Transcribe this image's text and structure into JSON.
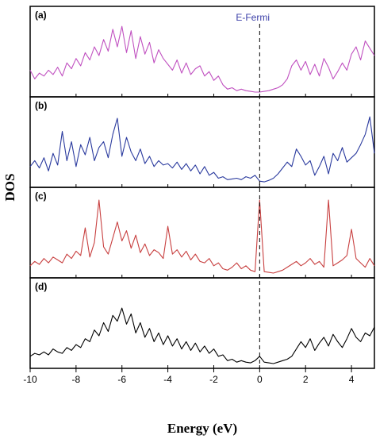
{
  "chart_data": {
    "type": "line",
    "xlabel": "Energy (eV)",
    "ylabel": "DOS",
    "xlim": [
      -10,
      5
    ],
    "xticks": [
      "-10",
      "-8",
      "-6",
      "-4",
      "-2",
      "0",
      "2",
      "4"
    ],
    "fermi": {
      "label": "E-Fermi",
      "x": 0,
      "color": "#3b3fa8"
    },
    "panels": [
      {
        "label": "(a)",
        "color": "#c050c0",
        "x": [
          -10,
          -9.8,
          -9.6,
          -9.4,
          -9.2,
          -9,
          -8.8,
          -8.6,
          -8.4,
          -8.2,
          -8,
          -7.8,
          -7.6,
          -7.4,
          -7.2,
          -7,
          -6.8,
          -6.6,
          -6.4,
          -6.2,
          -6,
          -5.8,
          -5.6,
          -5.4,
          -5.2,
          -5,
          -4.8,
          -4.6,
          -4.4,
          -4.2,
          -4,
          -3.8,
          -3.6,
          -3.4,
          -3.2,
          -3,
          -2.8,
          -2.6,
          -2.4,
          -2.2,
          -2,
          -1.8,
          -1.6,
          -1.4,
          -1.2,
          -1,
          -0.8,
          -0.6,
          -0.4,
          -0.2,
          0,
          0.2,
          0.4,
          0.6,
          0.8,
          1,
          1.2,
          1.4,
          1.6,
          1.8,
          2,
          2.2,
          2.4,
          2.6,
          2.8,
          3,
          3.2,
          3.4,
          3.6,
          3.8,
          4,
          4.2,
          4.4,
          4.6,
          4.8,
          5
        ],
        "values": [
          0.3,
          0.18,
          0.26,
          0.22,
          0.3,
          0.24,
          0.34,
          0.22,
          0.4,
          0.32,
          0.46,
          0.36,
          0.54,
          0.44,
          0.62,
          0.5,
          0.72,
          0.56,
          0.86,
          0.62,
          0.9,
          0.54,
          0.84,
          0.46,
          0.76,
          0.52,
          0.68,
          0.4,
          0.58,
          0.46,
          0.38,
          0.3,
          0.44,
          0.26,
          0.4,
          0.24,
          0.32,
          0.36,
          0.22,
          0.28,
          0.16,
          0.22,
          0.1,
          0.04,
          0.06,
          0.02,
          0.04,
          0.02,
          0.01,
          0.0,
          0.0,
          0.01,
          0.02,
          0.04,
          0.06,
          0.1,
          0.18,
          0.36,
          0.44,
          0.3,
          0.42,
          0.24,
          0.38,
          0.22,
          0.46,
          0.34,
          0.18,
          0.28,
          0.4,
          0.3,
          0.52,
          0.62,
          0.44,
          0.7,
          0.6,
          0.5
        ],
        "ylim": [
          0,
          1
        ]
      },
      {
        "label": "(b)",
        "color": "#2a3a9e",
        "x": [
          -10,
          -9.8,
          -9.6,
          -9.4,
          -9.2,
          -9,
          -8.8,
          -8.6,
          -8.4,
          -8.2,
          -8,
          -7.8,
          -7.6,
          -7.4,
          -7.2,
          -7,
          -6.8,
          -6.6,
          -6.4,
          -6.2,
          -6,
          -5.8,
          -5.6,
          -5.4,
          -5.2,
          -5,
          -4.8,
          -4.6,
          -4.4,
          -4.2,
          -4,
          -3.8,
          -3.6,
          -3.4,
          -3.2,
          -3,
          -2.8,
          -2.6,
          -2.4,
          -2.2,
          -2,
          -1.8,
          -1.6,
          -1.4,
          -1.2,
          -1,
          -0.8,
          -0.6,
          -0.4,
          -0.2,
          0,
          0.2,
          0.4,
          0.6,
          0.8,
          1,
          1.2,
          1.4,
          1.6,
          1.8,
          2,
          2.2,
          2.4,
          2.6,
          2.8,
          3,
          3.2,
          3.4,
          3.6,
          3.8,
          4,
          4.2,
          4.4,
          4.6,
          4.8,
          5
        ],
        "values": [
          0.22,
          0.3,
          0.2,
          0.34,
          0.16,
          0.4,
          0.24,
          0.7,
          0.3,
          0.56,
          0.22,
          0.52,
          0.38,
          0.62,
          0.3,
          0.48,
          0.56,
          0.34,
          0.66,
          0.88,
          0.36,
          0.62,
          0.42,
          0.3,
          0.46,
          0.26,
          0.36,
          0.22,
          0.3,
          0.24,
          0.26,
          0.2,
          0.28,
          0.18,
          0.26,
          0.16,
          0.24,
          0.12,
          0.22,
          0.1,
          0.14,
          0.06,
          0.08,
          0.04,
          0.05,
          0.06,
          0.04,
          0.08,
          0.06,
          0.1,
          0.02,
          0.01,
          0.03,
          0.06,
          0.12,
          0.2,
          0.28,
          0.22,
          0.46,
          0.36,
          0.24,
          0.3,
          0.1,
          0.22,
          0.36,
          0.12,
          0.4,
          0.3,
          0.48,
          0.28,
          0.34,
          0.4,
          0.52,
          0.66,
          0.9,
          0.4
        ],
        "ylim": [
          0,
          1
        ]
      },
      {
        "label": "(c)",
        "color": "#c84040",
        "x": [
          -10,
          -9.8,
          -9.6,
          -9.4,
          -9.2,
          -9,
          -8.8,
          -8.6,
          -8.4,
          -8.2,
          -8,
          -7.8,
          -7.6,
          -7.4,
          -7.2,
          -7,
          -6.8,
          -6.6,
          -6.4,
          -6.2,
          -6,
          -5.8,
          -5.6,
          -5.4,
          -5.2,
          -5,
          -4.8,
          -4.6,
          -4.4,
          -4.2,
          -4,
          -3.8,
          -3.6,
          -3.4,
          -3.2,
          -3,
          -2.8,
          -2.6,
          -2.4,
          -2.2,
          -2,
          -1.8,
          -1.6,
          -1.4,
          -1.2,
          -1,
          -0.8,
          -0.6,
          -0.4,
          -0.2,
          0,
          0.2,
          0.4,
          0.6,
          0.8,
          1,
          1.2,
          1.4,
          1.6,
          1.8,
          2,
          2.2,
          2.4,
          2.6,
          2.8,
          3,
          3.2,
          3.4,
          3.6,
          3.8,
          4,
          4.2,
          4.4,
          4.6,
          4.8,
          5
        ],
        "values": [
          0.1,
          0.16,
          0.12,
          0.2,
          0.14,
          0.22,
          0.18,
          0.14,
          0.26,
          0.2,
          0.3,
          0.24,
          0.62,
          0.22,
          0.42,
          1.0,
          0.36,
          0.26,
          0.48,
          0.7,
          0.44,
          0.58,
          0.34,
          0.52,
          0.28,
          0.4,
          0.24,
          0.32,
          0.28,
          0.2,
          0.64,
          0.26,
          0.32,
          0.22,
          0.3,
          0.18,
          0.26,
          0.16,
          0.14,
          0.2,
          0.1,
          0.14,
          0.06,
          0.04,
          0.08,
          0.14,
          0.06,
          0.1,
          0.04,
          0.02,
          1.0,
          0.02,
          0.01,
          0.0,
          0.02,
          0.04,
          0.08,
          0.12,
          0.16,
          0.1,
          0.14,
          0.2,
          0.12,
          0.16,
          0.08,
          1.0,
          0.1,
          0.14,
          0.18,
          0.24,
          0.6,
          0.2,
          0.14,
          0.08,
          0.2,
          0.1
        ],
        "ylim": [
          0,
          1
        ]
      },
      {
        "label": "(d)",
        "color": "#000000",
        "x": [
          -10,
          -9.8,
          -9.6,
          -9.4,
          -9.2,
          -9,
          -8.8,
          -8.6,
          -8.4,
          -8.2,
          -8,
          -7.8,
          -7.6,
          -7.4,
          -7.2,
          -7,
          -6.8,
          -6.6,
          -6.4,
          -6.2,
          -6,
          -5.8,
          -5.6,
          -5.4,
          -5.2,
          -5,
          -4.8,
          -4.6,
          -4.4,
          -4.2,
          -4,
          -3.8,
          -3.6,
          -3.4,
          -3.2,
          -3,
          -2.8,
          -2.6,
          -2.4,
          -2.2,
          -2,
          -1.8,
          -1.6,
          -1.4,
          -1.2,
          -1,
          -0.8,
          -0.6,
          -0.4,
          -0.2,
          0,
          0.2,
          0.4,
          0.6,
          0.8,
          1,
          1.2,
          1.4,
          1.6,
          1.8,
          2,
          2.2,
          2.4,
          2.6,
          2.8,
          3,
          3.2,
          3.4,
          3.6,
          3.8,
          4,
          4.2,
          4.4,
          4.6,
          4.8,
          5
        ],
        "values": [
          0.1,
          0.14,
          0.12,
          0.16,
          0.12,
          0.2,
          0.16,
          0.14,
          0.22,
          0.18,
          0.26,
          0.22,
          0.34,
          0.3,
          0.46,
          0.38,
          0.56,
          0.44,
          0.66,
          0.58,
          0.76,
          0.54,
          0.68,
          0.42,
          0.56,
          0.36,
          0.48,
          0.3,
          0.42,
          0.26,
          0.38,
          0.24,
          0.34,
          0.2,
          0.3,
          0.18,
          0.28,
          0.16,
          0.24,
          0.14,
          0.2,
          0.1,
          0.12,
          0.04,
          0.06,
          0.02,
          0.04,
          0.02,
          0.01,
          0.04,
          0.1,
          0.02,
          0.01,
          0.0,
          0.02,
          0.04,
          0.06,
          0.1,
          0.2,
          0.3,
          0.22,
          0.34,
          0.18,
          0.28,
          0.36,
          0.24,
          0.4,
          0.3,
          0.22,
          0.34,
          0.48,
          0.36,
          0.3,
          0.42,
          0.38,
          0.5
        ],
        "ylim": [
          0,
          1
        ]
      }
    ]
  }
}
